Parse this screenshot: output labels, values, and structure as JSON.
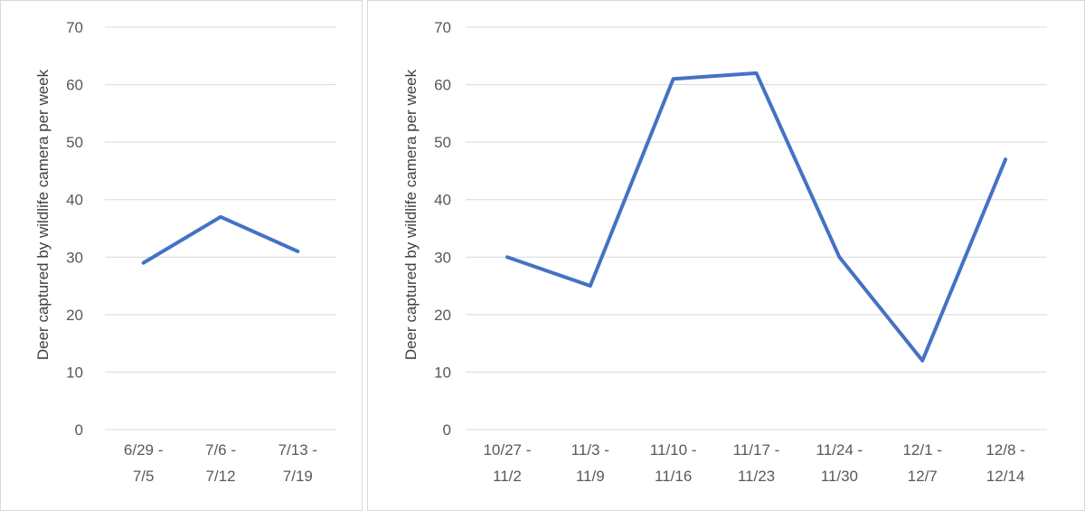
{
  "chart_data": [
    {
      "type": "line",
      "title": "",
      "xlabel": "",
      "ylabel": "Deer captured by wildlife camera per week",
      "ylim": [
        0,
        70
      ],
      "yticks": [
        0,
        10,
        20,
        30,
        40,
        50,
        60,
        70
      ],
      "grid": true,
      "legend": "none",
      "categories": [
        [
          "6/29 -",
          "7/5"
        ],
        [
          "7/6 -",
          "7/12"
        ],
        [
          "7/13 -",
          "7/19"
        ]
      ],
      "series": [
        {
          "values": [
            29,
            37,
            31
          ],
          "color": "#4472c4"
        }
      ]
    },
    {
      "type": "line",
      "title": "",
      "xlabel": "",
      "ylabel": "Deer captured by wildlife camera per week",
      "ylim": [
        0,
        70
      ],
      "yticks": [
        0,
        10,
        20,
        30,
        40,
        50,
        60,
        70
      ],
      "grid": true,
      "legend": "none",
      "categories": [
        [
          "10/27 -",
          "11/2"
        ],
        [
          "11/3 -",
          "11/9"
        ],
        [
          "11/10 -",
          "11/16"
        ],
        [
          "11/17 -",
          "11/23"
        ],
        [
          "11/24 -",
          "11/30"
        ],
        [
          "12/1 -",
          "12/7"
        ],
        [
          "12/8 -",
          "12/14"
        ]
      ],
      "series": [
        {
          "values": [
            30,
            25,
            61,
            62,
            30,
            12,
            47
          ],
          "color": "#4472c4"
        }
      ]
    }
  ]
}
